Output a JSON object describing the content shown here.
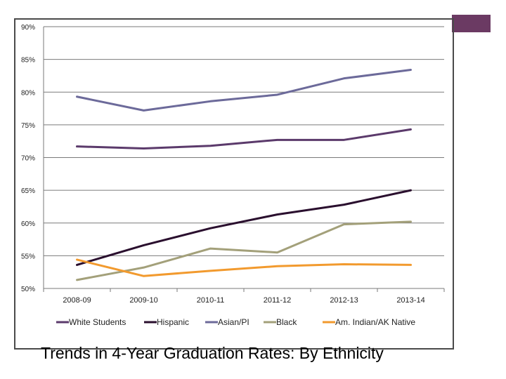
{
  "caption": "Trends in 4-Year Graduation Rates:  By Ethnicity",
  "chart_data": {
    "type": "line",
    "title": "Trends in 4-Year Graduation Rates:  By Ethnicity",
    "categories": [
      "2008-09",
      "2009-10",
      "2010-11",
      "2011-12",
      "2012-13",
      "2013-14"
    ],
    "y_ticks": [
      "50%",
      "55%",
      "60%",
      "65%",
      "70%",
      "75%",
      "80%",
      "85%",
      "90%"
    ],
    "ylim": [
      50,
      90
    ],
    "ytick_step": 5,
    "grid": true,
    "legend_position": "bottom",
    "series": [
      {
        "name": "White Students",
        "color": "#5b3a6b",
        "values": [
          71.7,
          71.4,
          71.8,
          72.7,
          72.7,
          74.3
        ]
      },
      {
        "name": "Hispanic",
        "color": "#2a0f2e",
        "values": [
          53.6,
          56.6,
          59.2,
          61.3,
          62.8,
          65.0
        ]
      },
      {
        "name": "Asian/PI",
        "color": "#6c6a9a",
        "values": [
          79.3,
          77.2,
          78.6,
          79.6,
          82.1,
          83.4
        ]
      },
      {
        "name": "Black",
        "color": "#a3a07a",
        "values": [
          51.3,
          53.2,
          56.1,
          55.5,
          59.8,
          60.2
        ]
      },
      {
        "name": "Am. Indian/AK Native",
        "color": "#f29a2e",
        "values": [
          54.4,
          51.9,
          52.7,
          53.4,
          53.7,
          53.6
        ]
      }
    ]
  }
}
